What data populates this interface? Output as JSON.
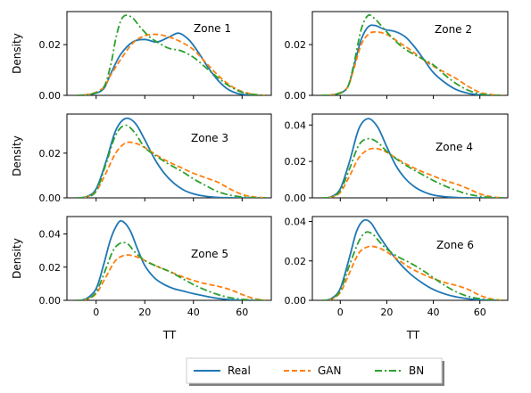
{
  "legend": {
    "items": [
      {
        "label": "Real",
        "color": "#1f77b4",
        "dash": "solid"
      },
      {
        "label": "GAN",
        "color": "#ff7f0e",
        "dash": "dashed"
      },
      {
        "label": "BN",
        "color": "#2ca02c",
        "dash": "dashdot"
      }
    ]
  },
  "chart_data": [
    {
      "type": "line",
      "annotation": "Zone 1",
      "xlabel": "",
      "ylabel": "Density",
      "xlim": [
        -12,
        72
      ],
      "ylim": [
        0,
        0.033
      ],
      "yticks": [
        0,
        0.02
      ],
      "ytick_labels": [
        "0.00",
        "0.02"
      ],
      "xticks": [],
      "xtick_labels": [],
      "series": [
        {
          "name": "Real",
          "x": [
            -8,
            -2,
            3,
            6,
            10,
            15,
            20,
            25,
            30,
            34,
            38,
            42,
            46,
            50,
            54,
            58,
            62,
            66,
            70
          ],
          "y": [
            0,
            0.0004,
            0.0025,
            0.0085,
            0.016,
            0.021,
            0.022,
            0.021,
            0.023,
            0.0245,
            0.022,
            0.017,
            0.011,
            0.006,
            0.0025,
            0.0008,
            0.0002,
            5e-05,
            0
          ]
        },
        {
          "name": "GAN",
          "x": [
            -8,
            -2,
            3,
            6,
            10,
            15,
            20,
            25,
            30,
            35,
            40,
            45,
            50,
            55,
            60,
            65,
            70
          ],
          "y": [
            0,
            0.0006,
            0.003,
            0.008,
            0.014,
            0.0205,
            0.0235,
            0.024,
            0.023,
            0.021,
            0.018,
            0.013,
            0.008,
            0.004,
            0.0015,
            0.0004,
            0
          ]
        },
        {
          "name": "BN",
          "x": [
            -8,
            -2,
            3,
            6,
            8,
            10,
            12,
            15,
            18,
            22,
            26,
            30,
            35,
            40,
            45,
            50,
            55,
            60,
            65,
            70
          ],
          "y": [
            0,
            0.0005,
            0.003,
            0.012,
            0.022,
            0.029,
            0.0315,
            0.0305,
            0.027,
            0.023,
            0.0205,
            0.0185,
            0.0175,
            0.015,
            0.011,
            0.007,
            0.0035,
            0.0012,
            0.0003,
            0
          ]
        }
      ]
    },
    {
      "type": "line",
      "annotation": "Zone 2",
      "xlabel": "",
      "ylabel": "",
      "xlim": [
        -12,
        72
      ],
      "ylim": [
        0,
        0.033
      ],
      "yticks": [
        0,
        0.02
      ],
      "ytick_labels": [
        "0.00",
        "0.02"
      ],
      "xticks": [],
      "xtick_labels": [],
      "series": [
        {
          "name": "Real",
          "x": [
            -8,
            -2,
            3,
            6,
            9,
            12,
            15,
            19,
            24,
            28,
            32,
            36,
            40,
            45,
            50,
            55,
            60,
            65,
            70
          ],
          "y": [
            0,
            0.0004,
            0.003,
            0.012,
            0.022,
            0.027,
            0.0275,
            0.026,
            0.025,
            0.023,
            0.019,
            0.014,
            0.009,
            0.005,
            0.0022,
            0.0008,
            0.0002,
            5e-05,
            0
          ]
        },
        {
          "name": "GAN",
          "x": [
            -8,
            -2,
            3,
            6,
            9,
            12,
            15,
            20,
            25,
            30,
            35,
            40,
            45,
            50,
            55,
            60,
            65,
            70
          ],
          "y": [
            0,
            0.0005,
            0.003,
            0.011,
            0.02,
            0.024,
            0.025,
            0.024,
            0.021,
            0.018,
            0.0145,
            0.0115,
            0.009,
            0.0065,
            0.0035,
            0.0012,
            0.0003,
            0
          ]
        },
        {
          "name": "BN",
          "x": [
            -8,
            -2,
            3,
            6,
            9,
            12,
            15,
            18,
            22,
            26,
            30,
            35,
            40,
            45,
            50,
            55,
            60,
            65,
            70
          ],
          "y": [
            0,
            0.0004,
            0.003,
            0.013,
            0.026,
            0.0315,
            0.03,
            0.027,
            0.023,
            0.0195,
            0.017,
            0.0145,
            0.012,
            0.008,
            0.0045,
            0.002,
            0.0006,
            0.0001,
            0
          ]
        }
      ]
    },
    {
      "type": "line",
      "annotation": "Zone 3",
      "xlabel": "",
      "ylabel": "Density",
      "xlim": [
        -12,
        72
      ],
      "ylim": [
        0,
        0.0375
      ],
      "yticks": [
        0,
        0.02
      ],
      "ytick_labels": [
        "0.00",
        "0.02"
      ],
      "xticks": [],
      "xtick_labels": [],
      "series": [
        {
          "name": "Real",
          "x": [
            -8,
            -4,
            0,
            4,
            8,
            12,
            16,
            20,
            24,
            28,
            32,
            36,
            40,
            45,
            50,
            55,
            60,
            65,
            70
          ],
          "y": [
            0,
            0.0005,
            0.004,
            0.016,
            0.03,
            0.0355,
            0.0335,
            0.026,
            0.0175,
            0.011,
            0.0065,
            0.0035,
            0.0018,
            0.0007,
            0.0002,
            5e-05,
            0,
            0,
            0
          ]
        },
        {
          "name": "GAN",
          "x": [
            -8,
            -4,
            0,
            4,
            8,
            12,
            16,
            20,
            25,
            30,
            35,
            40,
            45,
            50,
            55,
            60,
            65,
            70
          ],
          "y": [
            0,
            0.0004,
            0.003,
            0.011,
            0.02,
            0.0245,
            0.0245,
            0.0225,
            0.019,
            0.016,
            0.0135,
            0.011,
            0.009,
            0.007,
            0.004,
            0.0015,
            0.0004,
            0
          ]
        },
        {
          "name": "BN",
          "x": [
            -8,
            -4,
            0,
            4,
            8,
            12,
            16,
            20,
            25,
            30,
            35,
            40,
            45,
            50,
            55,
            60,
            65,
            70
          ],
          "y": [
            0,
            0.0004,
            0.003,
            0.015,
            0.028,
            0.0325,
            0.029,
            0.0225,
            0.0185,
            0.015,
            0.012,
            0.0085,
            0.0055,
            0.0028,
            0.0012,
            0.0004,
            0.0001,
            0
          ]
        }
      ]
    },
    {
      "type": "line",
      "annotation": "Zone 4",
      "xlabel": "",
      "ylabel": "",
      "xlim": [
        -12,
        72
      ],
      "ylim": [
        0,
        0.046
      ],
      "yticks": [
        0,
        0.02,
        0.04
      ],
      "ytick_labels": [
        "0.00",
        "0.02",
        "0.04"
      ],
      "xticks": [],
      "xtick_labels": [],
      "series": [
        {
          "name": "Real",
          "x": [
            -8,
            -4,
            0,
            4,
            8,
            12,
            16,
            20,
            24,
            28,
            32,
            36,
            40,
            45,
            50,
            55,
            60,
            65,
            70
          ],
          "y": [
            0,
            0.0005,
            0.005,
            0.02,
            0.038,
            0.0435,
            0.039,
            0.028,
            0.0175,
            0.0105,
            0.006,
            0.0032,
            0.0015,
            0.0006,
            0.0002,
            5e-05,
            0,
            0,
            0
          ]
        },
        {
          "name": "GAN",
          "x": [
            -8,
            -4,
            0,
            4,
            8,
            12,
            16,
            20,
            25,
            30,
            35,
            40,
            45,
            50,
            55,
            60,
            65,
            70
          ],
          "y": [
            0,
            0.0004,
            0.003,
            0.012,
            0.022,
            0.0265,
            0.027,
            0.025,
            0.021,
            0.0175,
            0.0145,
            0.012,
            0.0095,
            0.0075,
            0.005,
            0.0022,
            0.0006,
            0
          ]
        },
        {
          "name": "BN",
          "x": [
            -8,
            -4,
            0,
            4,
            8,
            12,
            16,
            20,
            25,
            30,
            35,
            40,
            45,
            50,
            55,
            60,
            65,
            70
          ],
          "y": [
            0,
            0.0004,
            0.004,
            0.016,
            0.029,
            0.0325,
            0.0305,
            0.0255,
            0.0205,
            0.0165,
            0.013,
            0.0095,
            0.0065,
            0.004,
            0.002,
            0.0008,
            0.0002,
            0
          ]
        }
      ]
    },
    {
      "type": "line",
      "annotation": "Zone 5",
      "xlabel": "TT",
      "ylabel": "Density",
      "xlim": [
        -12,
        72
      ],
      "ylim": [
        0,
        0.0505
      ],
      "yticks": [
        0,
        0.02,
        0.04
      ],
      "ytick_labels": [
        "0.00",
        "0.02",
        "0.04"
      ],
      "xticks": [
        0,
        20,
        40,
        60
      ],
      "xtick_labels": [
        "0",
        "20",
        "40",
        "60"
      ],
      "series": [
        {
          "name": "Real",
          "x": [
            -8,
            -4,
            0,
            3,
            6,
            9,
            11,
            14,
            17,
            20,
            24,
            28,
            32,
            36,
            40,
            45,
            50,
            55,
            60,
            65,
            70
          ],
          "y": [
            0,
            0.001,
            0.007,
            0.021,
            0.037,
            0.0465,
            0.0475,
            0.042,
            0.031,
            0.021,
            0.0135,
            0.0095,
            0.007,
            0.0055,
            0.004,
            0.0025,
            0.0012,
            0.0004,
            0.0001,
            0,
            0
          ]
        },
        {
          "name": "GAN",
          "x": [
            -8,
            -4,
            0,
            4,
            8,
            12,
            16,
            20,
            25,
            30,
            35,
            40,
            45,
            50,
            55,
            60,
            65,
            70
          ],
          "y": [
            0,
            0.0005,
            0.004,
            0.014,
            0.024,
            0.0272,
            0.0265,
            0.024,
            0.0205,
            0.0175,
            0.0145,
            0.012,
            0.01,
            0.0085,
            0.0065,
            0.0035,
            0.001,
            0
          ]
        },
        {
          "name": "BN",
          "x": [
            -8,
            -4,
            0,
            4,
            7,
            10,
            13,
            16,
            20,
            25,
            30,
            35,
            40,
            45,
            50,
            55,
            60,
            65,
            70
          ],
          "y": [
            0,
            0.0005,
            0.005,
            0.019,
            0.03,
            0.0345,
            0.034,
            0.029,
            0.024,
            0.0205,
            0.0175,
            0.0135,
            0.0095,
            0.0062,
            0.0035,
            0.0016,
            0.0006,
            0.0002,
            0
          ]
        }
      ]
    },
    {
      "type": "line",
      "annotation": "Zone 6",
      "xlabel": "TT",
      "ylabel": "",
      "xlim": [
        -12,
        72
      ],
      "ylim": [
        0,
        0.0425
      ],
      "yticks": [
        0,
        0.02,
        0.04
      ],
      "ytick_labels": [
        "0.00",
        "0.02",
        "0.04"
      ],
      "xticks": [
        0,
        20,
        40,
        60
      ],
      "xtick_labels": [
        "0",
        "20",
        "40",
        "60"
      ],
      "series": [
        {
          "name": "Real",
          "x": [
            -8,
            -4,
            0,
            4,
            7,
            10,
            13,
            16,
            20,
            25,
            30,
            35,
            40,
            45,
            50,
            55,
            60,
            65,
            70
          ],
          "y": [
            0,
            0.0008,
            0.006,
            0.022,
            0.035,
            0.0405,
            0.0395,
            0.034,
            0.027,
            0.0195,
            0.0135,
            0.009,
            0.0055,
            0.0032,
            0.0017,
            0.0008,
            0.0003,
            0.0001,
            0
          ]
        },
        {
          "name": "GAN",
          "x": [
            -8,
            -4,
            0,
            4,
            8,
            12,
            16,
            20,
            25,
            30,
            35,
            40,
            45,
            50,
            55,
            60,
            65,
            70
          ],
          "y": [
            0,
            0.0005,
            0.004,
            0.014,
            0.024,
            0.0272,
            0.0268,
            0.0245,
            0.0205,
            0.0165,
            0.0135,
            0.011,
            0.009,
            0.0075,
            0.0055,
            0.0025,
            0.0007,
            0
          ]
        },
        {
          "name": "BN",
          "x": [
            -8,
            -4,
            0,
            4,
            8,
            11,
            14,
            17,
            20,
            25,
            30,
            35,
            40,
            45,
            50,
            55,
            60,
            65,
            70
          ],
          "y": [
            0,
            0.0005,
            0.005,
            0.018,
            0.03,
            0.0345,
            0.0335,
            0.0295,
            0.026,
            0.022,
            0.019,
            0.0155,
            0.0115,
            0.0075,
            0.0042,
            0.002,
            0.0008,
            0.0002,
            0
          ]
        }
      ]
    }
  ]
}
